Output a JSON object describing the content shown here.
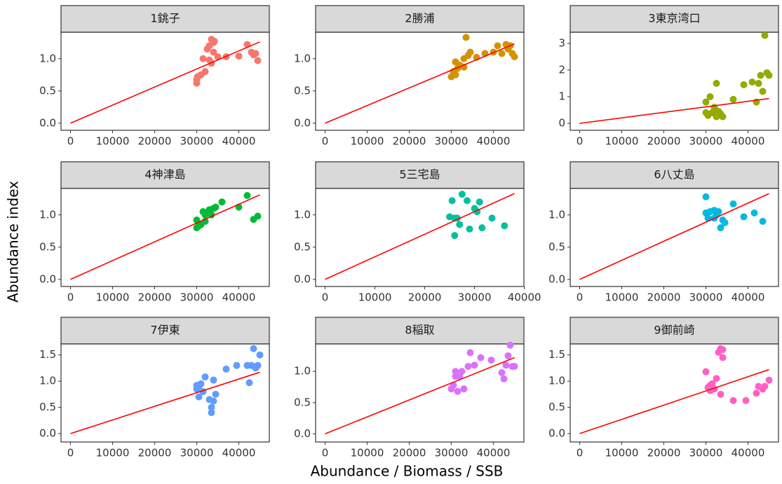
{
  "chart_data": {
    "type": "scatter",
    "xlabel": "Abundance / Biomass / SSB",
    "ylabel": "Abundance index",
    "facets": [
      {
        "title": "1銚子",
        "color": "#F8766D",
        "xlim": [
          -2250,
          47250
        ],
        "ylim": [
          -0.11,
          1.41
        ],
        "xticks": [
          0,
          10000,
          20000,
          30000,
          40000
        ],
        "yticks": [
          {
            "value": 0,
            "label": "0.0"
          },
          0.5,
          {
            "value": 1,
            "label": "1.0"
          }
        ],
        "x": [
          30000,
          30000,
          30200,
          31000,
          32000,
          31500,
          33000,
          32500,
          33000,
          33500,
          34000,
          34200,
          34000,
          35000,
          37000,
          40000,
          42000,
          43000,
          43500,
          44000,
          44500,
          33500
        ],
        "values": [
          0.62,
          0.68,
          0.72,
          0.75,
          0.8,
          1.0,
          0.98,
          1.15,
          1.2,
          1.3,
          1.25,
          1.27,
          1.1,
          1.03,
          1.03,
          1.04,
          1.22,
          1.1,
          1.06,
          1.08,
          0.97,
          0.93
        ],
        "fit": {
          "color": "#ff0000",
          "x": [
            0,
            45000
          ],
          "y": [
            0,
            1.26
          ]
        }
      },
      {
        "title": "2勝浦",
        "color": "#D39200",
        "xlim": [
          -2250,
          47250
        ],
        "ylim": [
          -0.11,
          1.41
        ],
        "xticks": [
          0,
          10000,
          20000,
          30000,
          40000
        ],
        "yticks": [
          {
            "value": 0,
            "label": "0.0"
          },
          0.5,
          {
            "value": 1,
            "label": "1.0"
          }
        ],
        "x": [
          30000,
          30500,
          31000,
          31000,
          31500,
          32000,
          33000,
          33000,
          34000,
          34500,
          33500,
          36000,
          38000,
          40000,
          41000,
          42000,
          43000,
          43500,
          44000,
          44500,
          45000
        ],
        "values": [
          0.72,
          0.8,
          0.75,
          0.95,
          0.85,
          0.9,
          0.87,
          1.0,
          1.05,
          1.1,
          1.33,
          1.02,
          1.08,
          1.1,
          1.2,
          1.08,
          1.22,
          1.15,
          1.2,
          1.08,
          1.03
        ],
        "fit": {
          "color": "#ff0000",
          "x": [
            0,
            45000
          ],
          "y": [
            0,
            1.23
          ]
        }
      },
      {
        "title": "3東京湾口",
        "color": "#93AA00",
        "xlim": [
          -2250,
          47250
        ],
        "ylim": [
          -0.26,
          3.42
        ],
        "xticks": [
          0,
          10000,
          20000,
          30000,
          40000
        ],
        "yticks": [
          0,
          1,
          2,
          3
        ],
        "x": [
          30000,
          30000,
          30500,
          31000,
          31500,
          32000,
          32500,
          32500,
          33000,
          33500,
          34000,
          36500,
          39000,
          41000,
          42000,
          42500,
          43000,
          43500,
          44000,
          44500,
          45000
        ],
        "values": [
          0.8,
          0.4,
          0.3,
          1.0,
          0.4,
          0.6,
          0.25,
          1.5,
          0.45,
          0.35,
          0.25,
          0.9,
          1.45,
          1.55,
          0.8,
          1.5,
          1.8,
          1.2,
          3.3,
          1.9,
          1.8
        ],
        "fit": {
          "color": "#ff0000",
          "x": [
            0,
            45000
          ],
          "y": [
            0,
            0.93
          ]
        }
      },
      {
        "title": "4神津島",
        "color": "#00BA38",
        "xlim": [
          -2250,
          47250
        ],
        "ylim": [
          -0.11,
          1.41
        ],
        "xticks": [
          0,
          10000,
          20000,
          30000,
          40000
        ],
        "yticks": [
          {
            "value": 0,
            "label": "0.0"
          },
          0.5,
          {
            "value": 1,
            "label": "1.0"
          }
        ],
        "x": [
          30000,
          30000,
          30500,
          31000,
          31500,
          32000,
          32000,
          33000,
          33500,
          34000,
          34500,
          36000,
          40000,
          42000,
          43500,
          44500
        ],
        "values": [
          0.8,
          0.92,
          0.83,
          0.85,
          1.05,
          0.9,
          1.0,
          1.08,
          1.0,
          1.1,
          1.12,
          1.2,
          1.12,
          1.3,
          0.93,
          0.98
        ],
        "fit": {
          "color": "#ff0000",
          "x": [
            0,
            45000
          ],
          "y": [
            0,
            1.31
          ]
        }
      },
      {
        "title": "5三宅島",
        "color": "#00C19F",
        "xlim": [
          -1900,
          39900
        ],
        "ylim": [
          -0.11,
          1.41
        ],
        "xticks": [
          0,
          10000,
          20000,
          30000,
          40000
        ],
        "yticks": [
          {
            "value": 0,
            "label": "0.0"
          },
          0.5,
          {
            "value": 1,
            "label": "1.0"
          }
        ],
        "x": [
          25000,
          25500,
          26000,
          26500,
          27500,
          27000,
          28500,
          29000,
          30000,
          30500,
          31000,
          31500,
          33500,
          36000,
          26000
        ],
        "values": [
          0.97,
          1.22,
          0.68,
          0.95,
          1.32,
          0.85,
          1.22,
          0.78,
          1.1,
          1.05,
          1.2,
          0.8,
          0.95,
          0.83,
          0.95
        ],
        "fit": {
          "color": "#ff0000",
          "x": [
            0,
            38000
          ],
          "y": [
            0,
            1.33
          ]
        }
      },
      {
        "title": "6八丈島",
        "color": "#00B9E3",
        "xlim": [
          -2250,
          47250
        ],
        "ylim": [
          -0.11,
          1.41
        ],
        "xticks": [
          0,
          10000,
          20000,
          30000,
          40000
        ],
        "yticks": [
          {
            "value": 0,
            "label": "0.0"
          },
          0.5,
          {
            "value": 1,
            "label": "1.0"
          }
        ],
        "x": [
          30000,
          30000,
          30500,
          31000,
          32000,
          32500,
          33000,
          33500,
          34000,
          34500,
          36500,
          39000,
          41500,
          43500,
          32000
        ],
        "values": [
          1.28,
          1.03,
          0.95,
          1.05,
          1.07,
          1.0,
          1.05,
          0.8,
          0.92,
          0.88,
          1.17,
          0.97,
          1.03,
          0.9,
          0.95
        ],
        "fit": {
          "color": "#ff0000",
          "x": [
            0,
            45000
          ],
          "y": [
            0,
            1.33
          ]
        }
      },
      {
        "title": "7伊東",
        "color": "#619CFF",
        "xlim": [
          -2250,
          47250
        ],
        "ylim": [
          -0.16,
          1.71
        ],
        "xticks": [
          0,
          10000,
          20000,
          30000,
          40000
        ],
        "yticks": [
          {
            "value": 0,
            "label": "0.0"
          },
          0.5,
          {
            "value": 1,
            "label": "1.0"
          },
          1.5
        ],
        "x": [
          30000,
          30500,
          30500,
          31000,
          31500,
          32000,
          33000,
          33500,
          33500,
          34000,
          34000,
          34500,
          37000,
          39500,
          42000,
          42500,
          43000,
          43500,
          44000,
          44500,
          45000,
          30000
        ],
        "values": [
          0.85,
          0.7,
          0.9,
          0.95,
          0.8,
          1.08,
          0.65,
          0.4,
          0.5,
          1.02,
          0.62,
          0.75,
          1.23,
          1.3,
          1.3,
          0.97,
          1.3,
          1.62,
          1.25,
          1.3,
          1.5,
          0.92
        ],
        "fit": {
          "color": "#ff0000",
          "x": [
            0,
            45000
          ],
          "y": [
            0,
            1.17
          ]
        }
      },
      {
        "title": "8稲取",
        "color": "#DB72FB",
        "xlim": [
          -2250,
          47250
        ],
        "ylim": [
          -0.13,
          1.44
        ],
        "xticks": [
          0,
          10000,
          20000,
          30000,
          40000
        ],
        "yticks": [
          {
            "value": 0,
            "label": "0.0"
          },
          0.5,
          {
            "value": 1,
            "label": "1.0"
          }
        ],
        "x": [
          30000,
          30500,
          31000,
          31500,
          32000,
          32500,
          33000,
          34000,
          34500,
          35500,
          37000,
          39500,
          42000,
          42500,
          43000,
          43500,
          44000,
          44500,
          45000,
          31000
        ],
        "values": [
          0.72,
          0.78,
          1.0,
          0.68,
          0.92,
          1.0,
          0.72,
          1.08,
          1.3,
          1.1,
          1.22,
          1.18,
          0.98,
          0.88,
          1.1,
          1.25,
          1.42,
          1.08,
          1.08,
          0.92
        ],
        "fit": {
          "color": "#ff0000",
          "x": [
            0,
            45000
          ],
          "y": [
            0,
            1.22
          ]
        }
      },
      {
        "title": "9御前崎",
        "color": "#FF61C3",
        "xlim": [
          -2250,
          47250
        ],
        "ylim": [
          -0.16,
          1.71
        ],
        "xticks": [
          0,
          10000,
          20000,
          30000,
          40000
        ],
        "yticks": [
          {
            "value": 0,
            "label": "0.0"
          },
          0.5,
          {
            "value": 1,
            "label": "1.0"
          },
          1.5
        ],
        "x": [
          30000,
          30500,
          31000,
          31500,
          32000,
          32500,
          33000,
          33500,
          34000,
          34000,
          33500,
          36500,
          39500,
          42000,
          42500,
          43500,
          44000,
          45000,
          31000
        ],
        "values": [
          1.18,
          0.88,
          0.92,
          0.95,
          0.85,
          1.05,
          1.55,
          1.62,
          1.45,
          1.6,
          0.75,
          0.63,
          0.63,
          0.77,
          0.9,
          0.85,
          0.9,
          1.02,
          0.82
        ],
        "fit": {
          "color": "#ff0000",
          "x": [
            0,
            45000
          ],
          "y": [
            0,
            1.22
          ]
        }
      }
    ]
  }
}
